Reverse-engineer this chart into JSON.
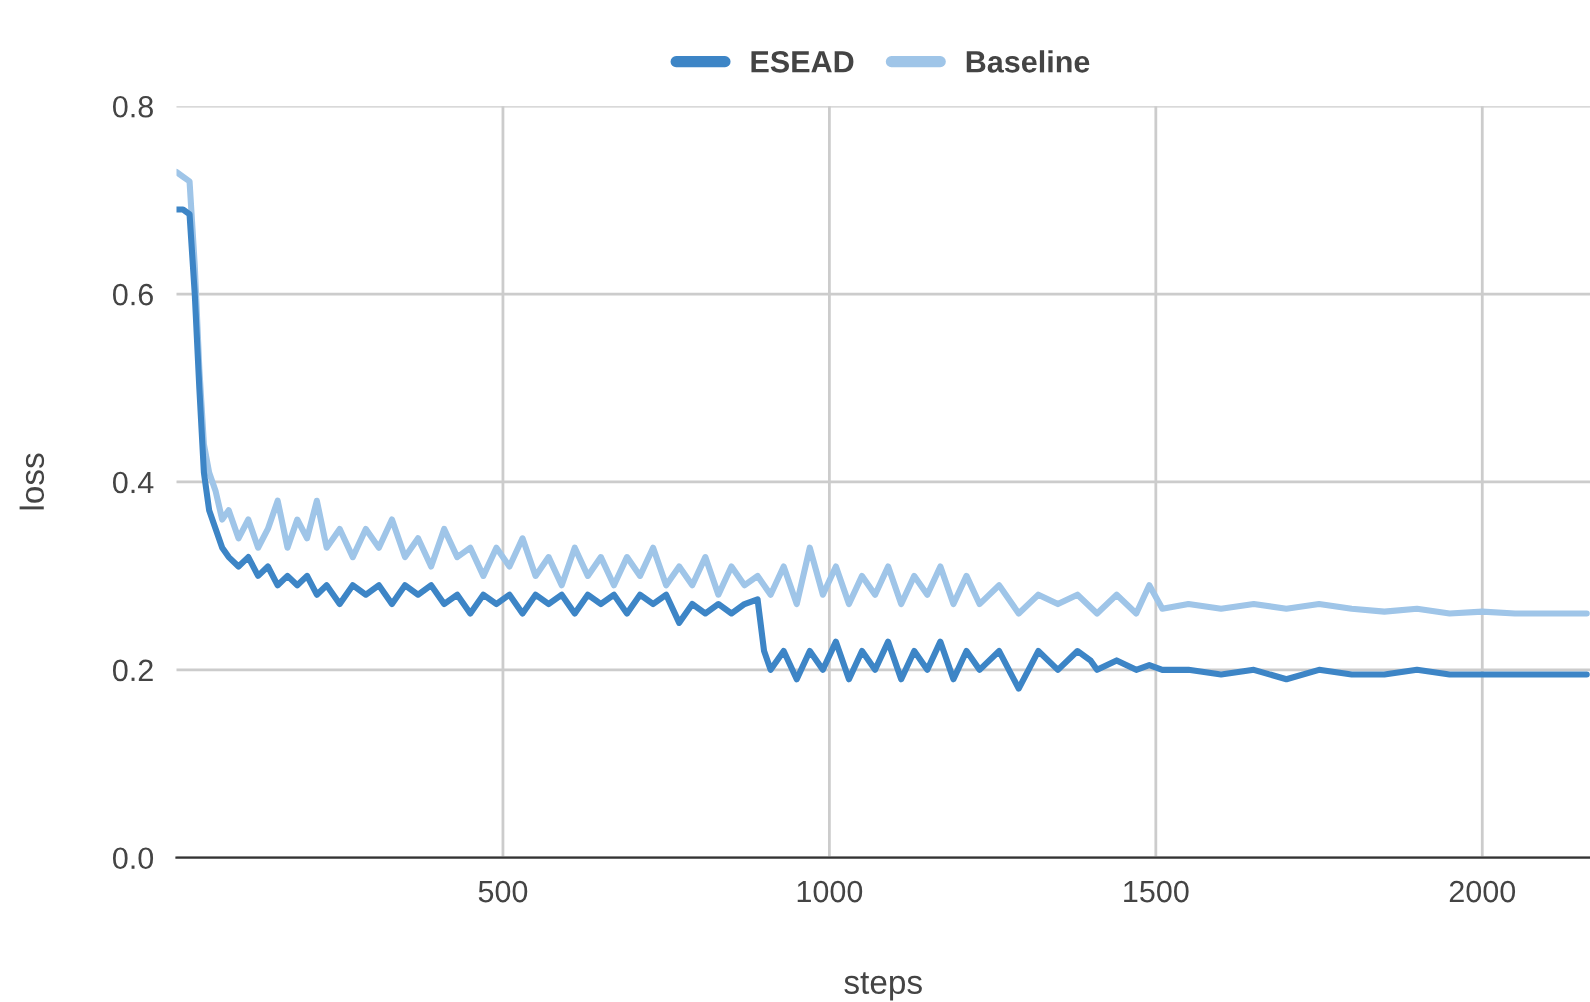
{
  "chart_data": {
    "type": "line",
    "xlabel": "steps",
    "ylabel": "loss",
    "xlim": [
      0,
      2165
    ],
    "xticks": [
      500,
      1000,
      1500,
      2000
    ],
    "ylim": [
      0,
      0.8
    ],
    "yticks": [
      {
        "value": 0,
        "label": "0.0"
      },
      {
        "value": 0.2,
        "label": "0.2"
      },
      {
        "value": 0.4,
        "label": "0.4"
      },
      {
        "value": 0.6,
        "label": "0.6"
      },
      {
        "value": 0.8,
        "label": "0.8"
      }
    ],
    "grid": true,
    "legend": "top",
    "marker": "none",
    "line_style": "solid",
    "series": [
      {
        "name": "ESEAD",
        "color": "#3d85c6",
        "x": [
          0,
          10,
          20,
          28,
          35,
          42,
          50,
          60,
          70,
          80,
          95,
          110,
          125,
          140,
          155,
          170,
          185,
          200,
          215,
          230,
          250,
          270,
          290,
          310,
          330,
          350,
          370,
          390,
          410,
          430,
          450,
          470,
          490,
          510,
          530,
          550,
          570,
          590,
          610,
          630,
          650,
          670,
          690,
          710,
          730,
          750,
          770,
          790,
          810,
          830,
          850,
          870,
          890,
          900,
          910,
          930,
          950,
          970,
          990,
          1010,
          1030,
          1050,
          1070,
          1090,
          1110,
          1130,
          1150,
          1170,
          1190,
          1210,
          1230,
          1260,
          1290,
          1320,
          1350,
          1380,
          1400,
          1410,
          1440,
          1470,
          1490,
          1510,
          1550,
          1600,
          1650,
          1700,
          1750,
          1800,
          1850,
          1900,
          1950,
          2000,
          2050,
          2100,
          2160
        ],
        "values": [
          0.69,
          0.69,
          0.685,
          0.6,
          0.5,
          0.41,
          0.37,
          0.35,
          0.33,
          0.32,
          0.31,
          0.32,
          0.3,
          0.31,
          0.29,
          0.3,
          0.29,
          0.3,
          0.28,
          0.29,
          0.27,
          0.29,
          0.28,
          0.29,
          0.27,
          0.29,
          0.28,
          0.29,
          0.27,
          0.28,
          0.26,
          0.28,
          0.27,
          0.28,
          0.26,
          0.28,
          0.27,
          0.28,
          0.26,
          0.28,
          0.27,
          0.28,
          0.26,
          0.28,
          0.27,
          0.28,
          0.25,
          0.27,
          0.26,
          0.27,
          0.26,
          0.27,
          0.275,
          0.22,
          0.2,
          0.22,
          0.19,
          0.22,
          0.2,
          0.23,
          0.19,
          0.22,
          0.2,
          0.23,
          0.19,
          0.22,
          0.2,
          0.23,
          0.19,
          0.22,
          0.2,
          0.22,
          0.18,
          0.22,
          0.2,
          0.22,
          0.21,
          0.2,
          0.21,
          0.2,
          0.205,
          0.2,
          0.2,
          0.195,
          0.2,
          0.19,
          0.2,
          0.195,
          0.195,
          0.2,
          0.195,
          0.195,
          0.195,
          0.195,
          0.195
        ]
      },
      {
        "name": "Baseline",
        "color": "#9fc5e8",
        "x": [
          0,
          10,
          20,
          28,
          35,
          42,
          50,
          60,
          70,
          80,
          95,
          110,
          125,
          140,
          155,
          170,
          185,
          200,
          215,
          230,
          250,
          270,
          290,
          310,
          330,
          350,
          370,
          390,
          410,
          430,
          450,
          470,
          490,
          510,
          530,
          550,
          570,
          590,
          610,
          630,
          650,
          670,
          690,
          710,
          730,
          750,
          770,
          790,
          810,
          830,
          850,
          870,
          890,
          910,
          930,
          950,
          970,
          990,
          1010,
          1030,
          1050,
          1070,
          1090,
          1110,
          1130,
          1150,
          1170,
          1190,
          1210,
          1230,
          1260,
          1290,
          1320,
          1350,
          1380,
          1410,
          1440,
          1470,
          1490,
          1510,
          1550,
          1600,
          1650,
          1700,
          1750,
          1800,
          1850,
          1900,
          1950,
          2000,
          2050,
          2100,
          2160
        ],
        "values": [
          0.73,
          0.725,
          0.72,
          0.63,
          0.52,
          0.44,
          0.41,
          0.39,
          0.36,
          0.37,
          0.34,
          0.36,
          0.33,
          0.35,
          0.38,
          0.33,
          0.36,
          0.34,
          0.38,
          0.33,
          0.35,
          0.32,
          0.35,
          0.33,
          0.36,
          0.32,
          0.34,
          0.31,
          0.35,
          0.32,
          0.33,
          0.3,
          0.33,
          0.31,
          0.34,
          0.3,
          0.32,
          0.29,
          0.33,
          0.3,
          0.32,
          0.29,
          0.32,
          0.3,
          0.33,
          0.29,
          0.31,
          0.29,
          0.32,
          0.28,
          0.31,
          0.29,
          0.3,
          0.28,
          0.31,
          0.27,
          0.33,
          0.28,
          0.31,
          0.27,
          0.3,
          0.28,
          0.31,
          0.27,
          0.3,
          0.28,
          0.31,
          0.27,
          0.3,
          0.27,
          0.29,
          0.26,
          0.28,
          0.27,
          0.28,
          0.26,
          0.28,
          0.26,
          0.29,
          0.265,
          0.27,
          0.265,
          0.27,
          0.265,
          0.27,
          0.265,
          0.262,
          0.265,
          0.26,
          0.262,
          0.26,
          0.26,
          0.26
        ]
      }
    ]
  }
}
